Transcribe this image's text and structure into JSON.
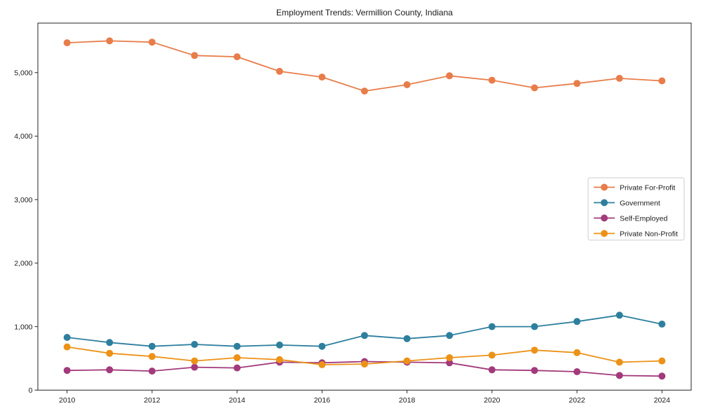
{
  "chart_data": {
    "type": "line",
    "title": "Employment Trends: Vermillion County, Indiana",
    "xlabel": "",
    "ylabel": "",
    "grid": false,
    "background": "#ffffff",
    "axis_color": "#262626",
    "x": [
      2010,
      2011,
      2012,
      2013,
      2014,
      2015,
      2016,
      2017,
      2018,
      2019,
      2020,
      2021,
      2022,
      2023,
      2024
    ],
    "xticks": {
      "values": [
        2010,
        2012,
        2014,
        2016,
        2018,
        2020,
        2022,
        2024
      ],
      "labels": [
        "2010",
        "2012",
        "2014",
        "2016",
        "2018",
        "2020",
        "2022",
        "2024"
      ]
    },
    "yticks": {
      "values": [
        0,
        1000,
        2000,
        3000,
        4000,
        5000
      ],
      "labels": [
        "0",
        "1,000",
        "2,000",
        "3,000",
        "4,000",
        "5,000"
      ]
    },
    "ylim": [
      0,
      5780
    ],
    "legend": {
      "position": "right",
      "border_color": "#cccccc",
      "background": "#ffffff"
    },
    "series": [
      {
        "name": "Private For-Profit",
        "color": "#e87d4a",
        "values": [
          5470,
          5500,
          5480,
          5270,
          5250,
          5020,
          4930,
          4710,
          4810,
          4950,
          4880,
          4760,
          4830,
          4910,
          4870
        ]
      },
      {
        "name": "Government",
        "color": "#2e7f9e",
        "values": [
          830,
          750,
          690,
          720,
          690,
          710,
          690,
          860,
          810,
          860,
          1000,
          1000,
          1080,
          1180,
          1040
        ]
      },
      {
        "name": "Self-Employed",
        "color": "#a23a7b",
        "values": [
          310,
          320,
          300,
          360,
          350,
          440,
          430,
          450,
          440,
          430,
          320,
          310,
          290,
          230,
          220
        ]
      },
      {
        "name": "Private Non-Profit",
        "color": "#ec9217",
        "values": [
          680,
          580,
          530,
          460,
          510,
          480,
          400,
          410,
          460,
          510,
          550,
          630,
          590,
          440,
          460
        ]
      }
    ]
  }
}
